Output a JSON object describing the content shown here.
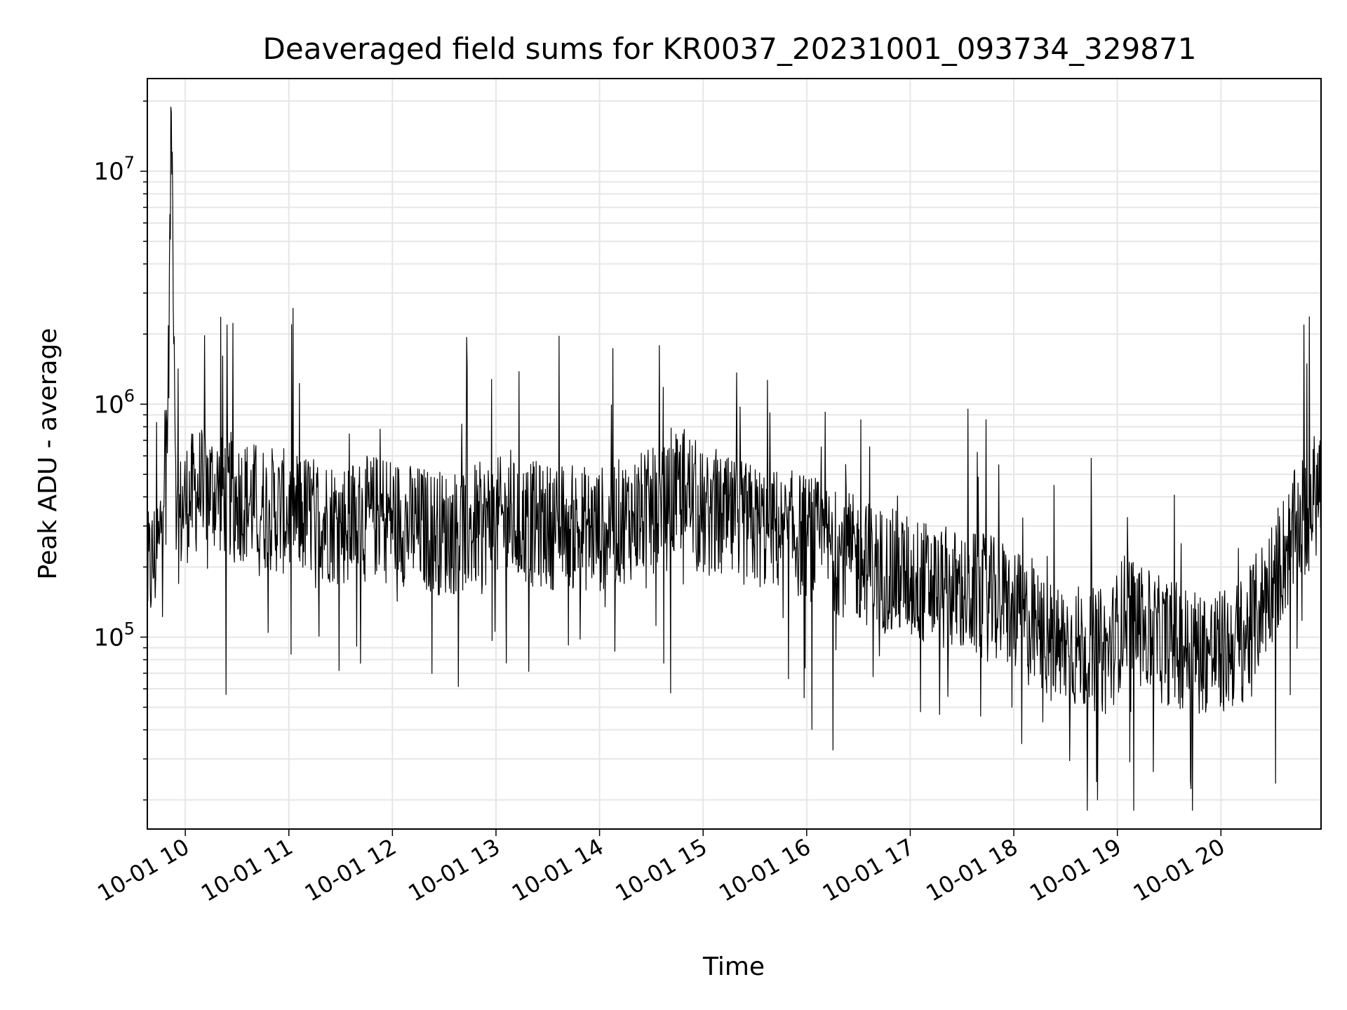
{
  "chart_data": {
    "type": "line",
    "title": "Deaveraged field sums for KR0037_20231001_093734_329871",
    "xlabel": "Time",
    "ylabel": "Peak ADU - average",
    "yscale": "log",
    "ylim": [
      15000,
      25000000
    ],
    "xlim": [
      "2023-10-01 09:38",
      "2023-10-01 20:58"
    ],
    "grid": true,
    "x_ticks": [
      {
        "x": "2023-10-01 10:00",
        "label": "10-01 10"
      },
      {
        "x": "2023-10-01 11:00",
        "label": "10-01 11"
      },
      {
        "x": "2023-10-01 12:00",
        "label": "10-01 12"
      },
      {
        "x": "2023-10-01 13:00",
        "label": "10-01 13"
      },
      {
        "x": "2023-10-01 14:00",
        "label": "10-01 14"
      },
      {
        "x": "2023-10-01 15:00",
        "label": "10-01 15"
      },
      {
        "x": "2023-10-01 16:00",
        "label": "10-01 16"
      },
      {
        "x": "2023-10-01 17:00",
        "label": "10-01 17"
      },
      {
        "x": "2023-10-01 18:00",
        "label": "10-01 18"
      },
      {
        "x": "2023-10-01 19:00",
        "label": "10-01 19"
      },
      {
        "x": "2023-10-01 20:00",
        "label": "10-01 20"
      }
    ],
    "y_ticks": [
      {
        "value": 100000,
        "base": "10",
        "exp": "5"
      },
      {
        "value": 1000000,
        "base": "10",
        "exp": "6"
      },
      {
        "value": 10000000,
        "base": "10",
        "exp": "7"
      }
    ],
    "line_color": "#000000",
    "series": [
      {
        "x": [
          "2023-10-01 09:38",
          "2023-10-01 09:45",
          "2023-10-01 09:50",
          "2023-10-01 09:52",
          "2023-10-01 09:55",
          "2023-10-01 10:00",
          "2023-10-01 10:10",
          "2023-10-01 10:20",
          "2023-10-01 10:30",
          "2023-10-01 10:45",
          "2023-10-01 11:00",
          "2023-10-01 11:15",
          "2023-10-01 11:30",
          "2023-10-01 11:45",
          "2023-10-01 11:55",
          "2023-10-01 12:10",
          "2023-10-01 12:30",
          "2023-10-01 12:45",
          "2023-10-01 13:00",
          "2023-10-01 13:30",
          "2023-10-01 14:00",
          "2023-10-01 14:20",
          "2023-10-01 14:40",
          "2023-10-01 14:50",
          "2023-10-01 15:00",
          "2023-10-01 15:20",
          "2023-10-01 15:40",
          "2023-10-01 16:00",
          "2023-10-01 16:20",
          "2023-10-01 16:40",
          "2023-10-01 17:00",
          "2023-10-01 17:20",
          "2023-10-01 17:40",
          "2023-10-01 17:55",
          "2023-10-01 18:05",
          "2023-10-01 18:20",
          "2023-10-01 18:40",
          "2023-10-01 18:55",
          "2023-10-01 19:05",
          "2023-10-01 19:20",
          "2023-10-01 19:40",
          "2023-10-01 20:00",
          "2023-10-01 20:15",
          "2023-10-01 20:30",
          "2023-10-01 20:45",
          "2023-10-01 20:58"
        ],
        "y": [
          180000,
          250000,
          1000000,
          18000000,
          300000,
          380000,
          450000,
          420000,
          400000,
          360000,
          340000,
          330000,
          310000,
          320000,
          340000,
          300000,
          280000,
          290000,
          320000,
          300000,
          290000,
          330000,
          360000,
          450000,
          330000,
          310000,
          290000,
          270000,
          230000,
          200000,
          180000,
          160000,
          150000,
          140000,
          120000,
          95000,
          90000,
          85000,
          130000,
          100000,
          90000,
          85000,
          100000,
          180000,
          300000,
          450000
        ]
      }
    ]
  }
}
